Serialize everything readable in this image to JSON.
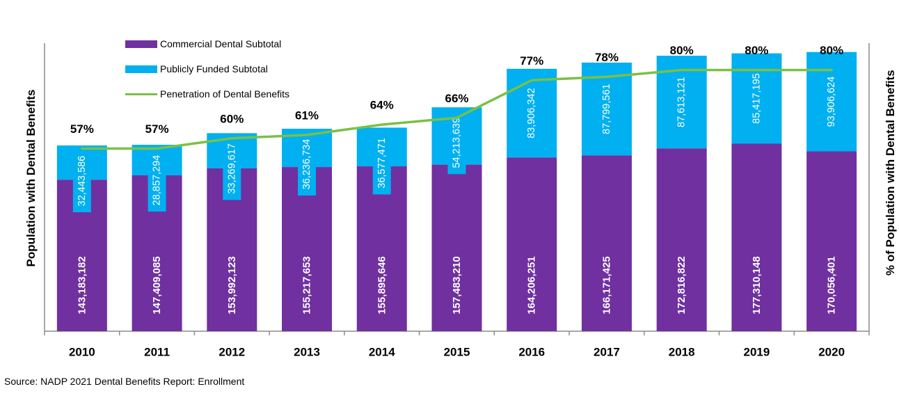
{
  "chart_data": {
    "type": "bar",
    "subtype": "stacked-bar-with-line",
    "categories": [
      "2010",
      "2011",
      "2012",
      "2013",
      "2014",
      "2015",
      "2016",
      "2017",
      "2018",
      "2019",
      "2020"
    ],
    "series": [
      {
        "name": "Commercial Dental Subtotal",
        "kind": "bar",
        "color": "#7030A0",
        "values": [
          143183182,
          147409085,
          153992123,
          155217653,
          155895646,
          157483210,
          164206251,
          166171425,
          172816822,
          177310148,
          170056401
        ],
        "labels": [
          "143,183,182",
          "147,409,085",
          "153,992,123",
          "155,217,653",
          "155,895,646",
          "157,483,210",
          "164,206,251",
          "166,171,425",
          "172,816,822",
          "177,310,148",
          "170,056,401"
        ]
      },
      {
        "name": "Publicly Funded Subtotal",
        "kind": "bar",
        "color": "#00B0F0",
        "values": [
          32443586,
          28857294,
          33269617,
          36236734,
          36577471,
          54213639,
          83906342,
          87799561,
          87613121,
          85417195,
          93906624
        ],
        "labels": [
          "32,443,586",
          "28,857,294",
          "33,269,617",
          "36,236,734",
          "36,577,471",
          "54,213,639",
          "83,906,342",
          "87,799,561",
          "87,613,121",
          "85,417,195",
          "93,906,624"
        ]
      },
      {
        "name": "Penetration of Dental Benefits",
        "kind": "line",
        "axis": "right",
        "color": "#7AC143",
        "values": [
          57,
          57,
          60,
          61,
          64,
          66,
          77,
          78,
          80,
          80,
          80
        ],
        "labels": [
          "57%",
          "57%",
          "60%",
          "61%",
          "64%",
          "66%",
          "77%",
          "78%",
          "80%",
          "80%",
          "80%"
        ]
      }
    ],
    "ylabel": "Population with Dental Benefits",
    "ylabel_right": "% of Population with Dental Benefits",
    "legend_position": "top-left",
    "grid": false,
    "source": "Source: NADP 2021 Dental Benefits Report: Enrollment"
  }
}
